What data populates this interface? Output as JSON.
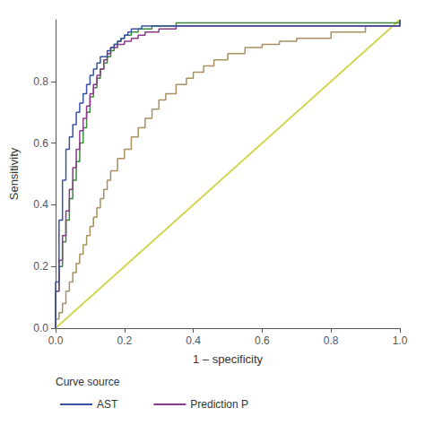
{
  "chart_data": {
    "type": "line",
    "xlabel": "1 – specificity",
    "ylabel": "Sensitivity",
    "xlim": [
      0.0,
      1.0
    ],
    "ylim": [
      0.0,
      1.0
    ],
    "xticks": [
      {
        "value": 0.0,
        "label": "0.0"
      },
      0.2,
      0.4,
      0.6,
      0.8,
      {
        "value": 1.0,
        "label": "1.0"
      }
    ],
    "yticks": [
      {
        "value": 0.0,
        "label": "0.0"
      },
      0.2,
      0.4,
      0.6,
      0.8
    ],
    "grid": false,
    "legend": "bottom",
    "legend_title": "Curve source",
    "series": [
      {
        "name": "AST",
        "type": "step",
        "color": "#3a52a4",
        "x": [
          0.0,
          0.0,
          0.0,
          0.0,
          0.0,
          0.01,
          0.01,
          0.01,
          0.01,
          0.02,
          0.02,
          0.02,
          0.03,
          0.03,
          0.03,
          0.04,
          0.04,
          0.05,
          0.05,
          0.06,
          0.06,
          0.07,
          0.07,
          0.08,
          0.08,
          0.09,
          0.09,
          0.1,
          0.1,
          0.11,
          0.11,
          0.12,
          0.12,
          0.13,
          0.13,
          0.14,
          0.15,
          0.16,
          0.17,
          0.18,
          0.19,
          0.2,
          0.21,
          0.22,
          0.23,
          0.25,
          1.0
        ],
        "values": [
          0.0,
          0.02,
          0.05,
          0.1,
          0.15,
          0.15,
          0.2,
          0.28,
          0.35,
          0.35,
          0.42,
          0.48,
          0.48,
          0.53,
          0.58,
          0.58,
          0.62,
          0.62,
          0.66,
          0.66,
          0.7,
          0.7,
          0.73,
          0.73,
          0.76,
          0.76,
          0.79,
          0.79,
          0.82,
          0.82,
          0.84,
          0.84,
          0.86,
          0.86,
          0.88,
          0.88,
          0.9,
          0.91,
          0.92,
          0.93,
          0.94,
          0.95,
          0.96,
          0.97,
          0.97,
          0.98,
          1.0
        ]
      },
      {
        "name": "Prediction P",
        "type": "step",
        "color": "#8b3a8b",
        "x": [
          0.0,
          0.0,
          0.0,
          0.01,
          0.01,
          0.02,
          0.02,
          0.03,
          0.03,
          0.04,
          0.04,
          0.05,
          0.05,
          0.06,
          0.06,
          0.07,
          0.07,
          0.08,
          0.09,
          0.1,
          0.11,
          0.12,
          0.13,
          0.14,
          0.15,
          0.16,
          0.18,
          0.2,
          0.22,
          0.24,
          0.26,
          0.3,
          0.35,
          0.4,
          1.0
        ],
        "values": [
          0.0,
          0.05,
          0.12,
          0.12,
          0.22,
          0.22,
          0.3,
          0.3,
          0.38,
          0.38,
          0.45,
          0.45,
          0.52,
          0.52,
          0.58,
          0.58,
          0.64,
          0.68,
          0.72,
          0.76,
          0.79,
          0.82,
          0.84,
          0.87,
          0.89,
          0.91,
          0.92,
          0.93,
          0.94,
          0.95,
          0.96,
          0.97,
          0.98,
          0.98,
          1.0
        ]
      },
      {
        "type": "step",
        "color": "#3a8c3a",
        "x": [
          0.0,
          0.0,
          0.0,
          0.01,
          0.01,
          0.02,
          0.02,
          0.03,
          0.03,
          0.04,
          0.04,
          0.05,
          0.05,
          0.06,
          0.06,
          0.07,
          0.07,
          0.08,
          0.08,
          0.09,
          0.09,
          0.1,
          0.1,
          0.11,
          0.12,
          0.13,
          0.14,
          0.15,
          0.16,
          0.17,
          0.18,
          0.19,
          0.2,
          0.22,
          0.24,
          0.26,
          0.28,
          0.3,
          0.35,
          0.4,
          1.0
        ],
        "values": [
          0.0,
          0.05,
          0.12,
          0.12,
          0.2,
          0.2,
          0.28,
          0.28,
          0.35,
          0.35,
          0.42,
          0.42,
          0.48,
          0.48,
          0.54,
          0.54,
          0.6,
          0.6,
          0.65,
          0.65,
          0.7,
          0.7,
          0.75,
          0.78,
          0.81,
          0.84,
          0.86,
          0.88,
          0.9,
          0.92,
          0.93,
          0.94,
          0.95,
          0.96,
          0.97,
          0.97,
          0.98,
          0.98,
          0.99,
          0.99,
          1.0
        ]
      },
      {
        "type": "step",
        "color": "#a89060",
        "x": [
          0.0,
          0.0,
          0.01,
          0.02,
          0.03,
          0.04,
          0.05,
          0.06,
          0.07,
          0.08,
          0.09,
          0.1,
          0.11,
          0.12,
          0.13,
          0.14,
          0.15,
          0.16,
          0.18,
          0.2,
          0.22,
          0.24,
          0.26,
          0.28,
          0.3,
          0.32,
          0.35,
          0.38,
          0.4,
          0.43,
          0.46,
          0.5,
          0.55,
          0.6,
          0.65,
          0.7,
          0.8,
          0.9,
          1.0
        ],
        "values": [
          0.0,
          0.03,
          0.05,
          0.08,
          0.12,
          0.15,
          0.18,
          0.21,
          0.24,
          0.27,
          0.3,
          0.33,
          0.36,
          0.39,
          0.42,
          0.45,
          0.48,
          0.51,
          0.55,
          0.58,
          0.62,
          0.65,
          0.68,
          0.71,
          0.74,
          0.76,
          0.79,
          0.81,
          0.83,
          0.85,
          0.87,
          0.89,
          0.91,
          0.92,
          0.93,
          0.94,
          0.96,
          0.98,
          1.0
        ]
      },
      {
        "type": "line",
        "color": "#d4d44a",
        "x": [
          0.0,
          1.0
        ],
        "values": [
          0.0,
          1.0
        ]
      }
    ]
  }
}
